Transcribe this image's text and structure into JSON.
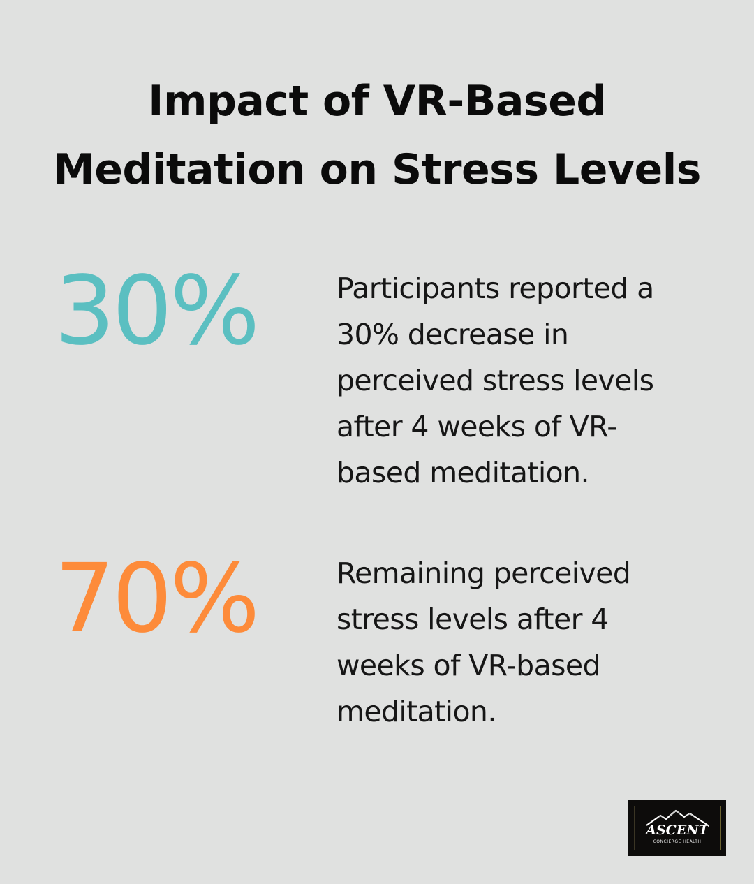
{
  "title": {
    "line1": "Impact of VR-Based",
    "line2": "Meditation on Stress Levels"
  },
  "stats": [
    {
      "value": "30%",
      "color": "#5bbfc1",
      "lines": [
        "Participants reported a",
        "30% decrease in",
        "perceived stress levels",
        "after 4 weeks of VR-",
        "based meditation."
      ]
    },
    {
      "value": "70%",
      "color": "#fd8b3a",
      "lines": [
        "Remaining perceived",
        "stress levels after 4",
        "weeks of VR-based",
        "meditation."
      ]
    }
  ],
  "logo": {
    "name": "ASCENT",
    "tagline": "CONCIERGE HEALTH",
    "icon": "mountain-icon"
  },
  "colors": {
    "background": "#e0e1e0",
    "text": "#0b0b0b",
    "accent_teal": "#5bbfc1",
    "accent_orange": "#fd8b3a"
  }
}
